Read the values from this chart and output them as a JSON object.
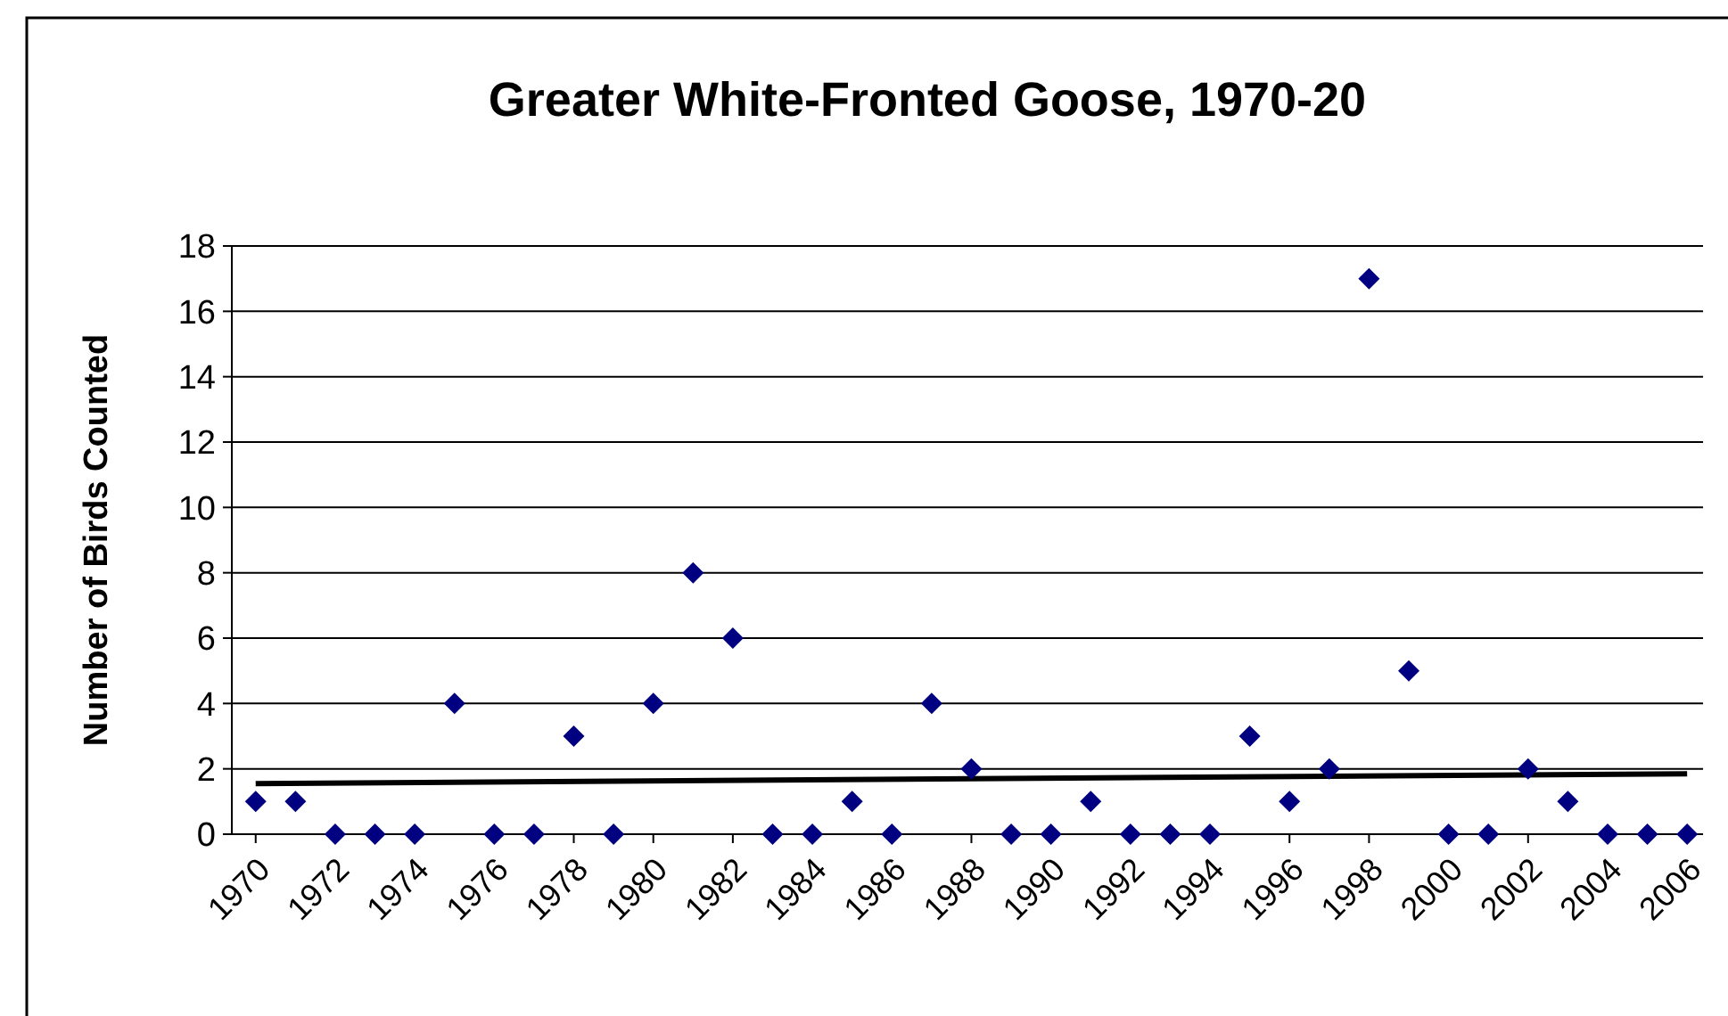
{
  "chart_data": {
    "type": "scatter",
    "title": "Greater White-Fronted Goose, 1970-20",
    "ylabel": "Number of Birds Counted",
    "xlim": [
      1969.4,
      2006.4
    ],
    "xticks": [
      1970,
      1972,
      1974,
      1976,
      1978,
      1980,
      1982,
      1984,
      1986,
      1988,
      1990,
      1992,
      1994,
      1996,
      1998,
      2000,
      2002,
      2004,
      2006
    ],
    "ylim": [
      0,
      18
    ],
    "yticks": [
      0,
      2,
      4,
      6,
      8,
      10,
      12,
      14,
      16,
      18
    ],
    "grid": "y",
    "series": [
      {
        "color": "#000080",
        "marker": "diamond",
        "x": [
          1970,
          1971,
          1972,
          1973,
          1974,
          1975,
          1976,
          1977,
          1978,
          1979,
          1980,
          1981,
          1982,
          1983,
          1984,
          1985,
          1986,
          1987,
          1988,
          1989,
          1990,
          1991,
          1992,
          1993,
          1994,
          1995,
          1996,
          1997,
          1998,
          1999,
          2000,
          2001,
          2002,
          2003,
          2004,
          2005,
          2006
        ],
        "values": [
          1,
          1,
          0,
          0,
          0,
          4,
          0,
          0,
          3,
          0,
          4,
          8,
          6,
          0,
          0,
          1,
          0,
          4,
          2,
          0,
          0,
          1,
          0,
          0,
          0,
          3,
          1,
          2,
          17,
          5,
          0,
          0,
          2,
          1,
          0,
          0,
          0
        ]
      },
      {
        "type": "line",
        "color": "#000000",
        "marker": "none",
        "x": [
          1970,
          2006
        ],
        "values": [
          1.55,
          1.85
        ]
      }
    ]
  }
}
